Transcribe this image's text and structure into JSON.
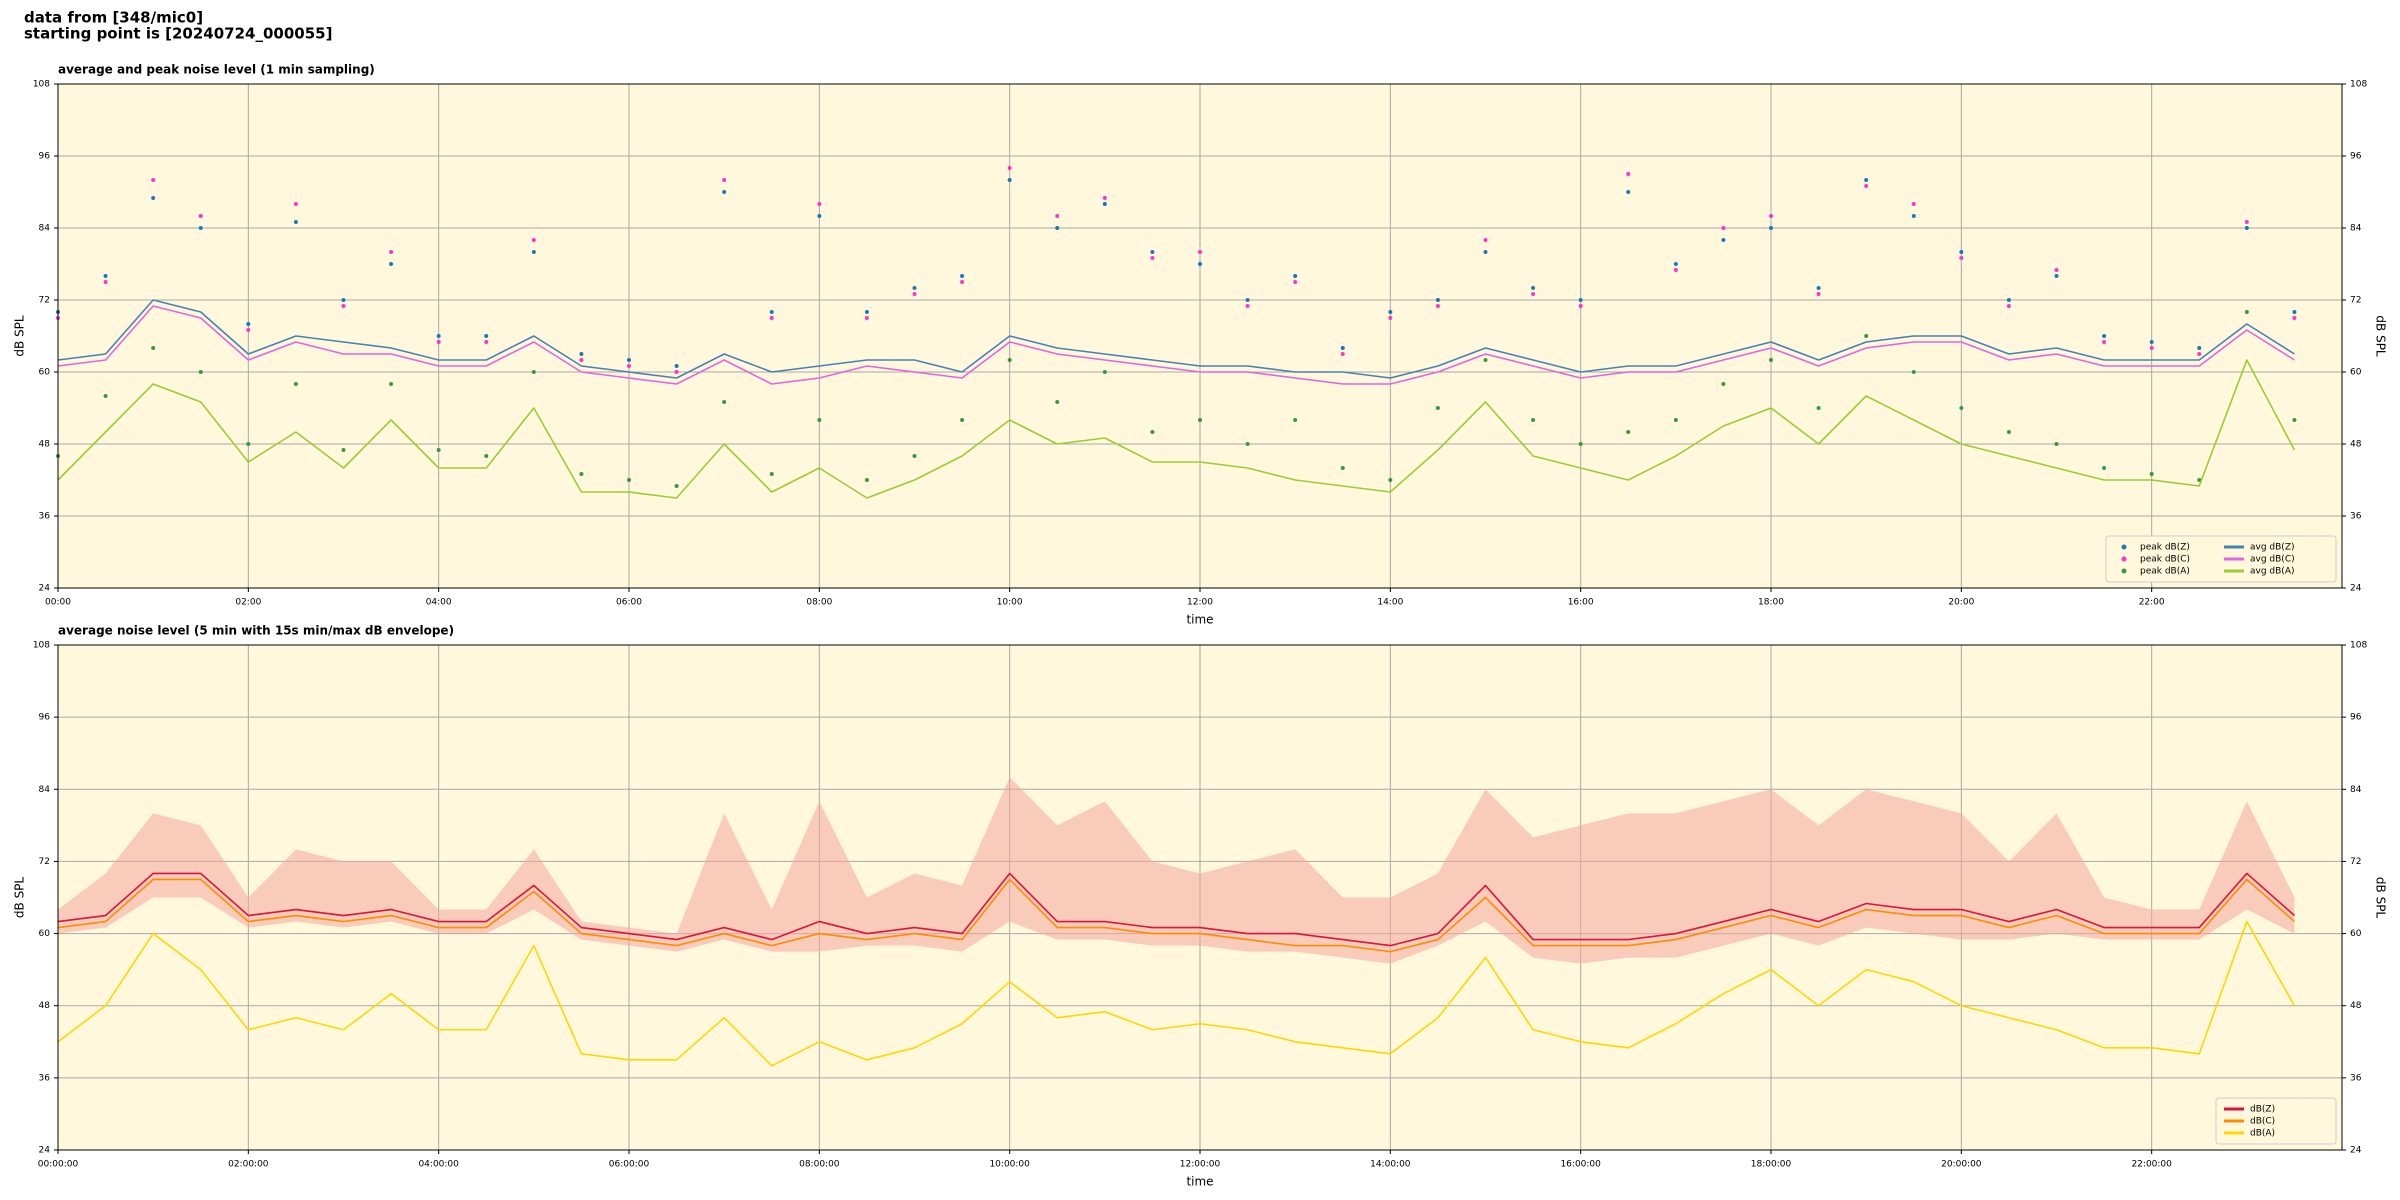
{
  "header": {
    "line1": "data from [348/mic0]",
    "line2": "starting point is [20240724_000055]"
  },
  "chart_data": [
    {
      "type": "line",
      "title": "average and peak noise level (1 min sampling)",
      "xlabel": "time",
      "ylabel": "dB SPL",
      "x": [
        0,
        0.5,
        1,
        1.5,
        2,
        2.5,
        3,
        3.5,
        4,
        4.5,
        5,
        5.5,
        6,
        6.5,
        7,
        7.5,
        8,
        8.5,
        9,
        9.5,
        10,
        10.5,
        11,
        11.5,
        12,
        12.5,
        13,
        13.5,
        14,
        14.5,
        15,
        15.5,
        16,
        16.5,
        17,
        17.5,
        18,
        18.5,
        19,
        19.5,
        20,
        20.5,
        21,
        21.5,
        22,
        22.5,
        23,
        23.5
      ],
      "xlim": [
        0,
        24
      ],
      "ylim": [
        24,
        108
      ],
      "yticks": [
        24,
        36,
        48,
        60,
        72,
        84,
        96,
        108
      ],
      "xticks": [
        {
          "value": 0,
          "label": "00:00"
        },
        {
          "value": 2,
          "label": "02:00"
        },
        {
          "value": 4,
          "label": "04:00"
        },
        {
          "value": 6,
          "label": "06:00"
        },
        {
          "value": 8,
          "label": "08:00"
        },
        {
          "value": 10,
          "label": "10:00"
        },
        {
          "value": 12,
          "label": "12:00"
        },
        {
          "value": 14,
          "label": "14:00"
        },
        {
          "value": 16,
          "label": "16:00"
        },
        {
          "value": 18,
          "label": "18:00"
        },
        {
          "value": 20,
          "label": "20:00"
        },
        {
          "value": 22,
          "label": "22:00"
        }
      ],
      "grid": true,
      "background": "#fff8dc",
      "legend": "lower right",
      "legend_columns": 2,
      "series": [
        {
          "name": "peak dB(Z)",
          "marker": "dot",
          "color": "#1f77b4",
          "values": [
            70,
            76,
            89,
            84,
            68,
            85,
            72,
            78,
            66,
            66,
            80,
            63,
            62,
            61,
            90,
            70,
            86,
            70,
            74,
            76,
            92,
            84,
            88,
            80,
            78,
            72,
            76,
            64,
            70,
            72,
            80,
            74,
            72,
            90,
            78,
            82,
            84,
            74,
            92,
            86,
            80,
            72,
            76,
            66,
            65,
            64,
            84,
            70
          ]
        },
        {
          "name": "peak dB(C)",
          "marker": "dot",
          "color": "#ff33cc",
          "values": [
            69,
            75,
            92,
            86,
            67,
            88,
            71,
            80,
            65,
            65,
            82,
            62,
            61,
            60,
            92,
            69,
            88,
            69,
            73,
            75,
            94,
            86,
            89,
            79,
            80,
            71,
            75,
            63,
            69,
            71,
            82,
            73,
            71,
            93,
            77,
            84,
            86,
            73,
            91,
            88,
            79,
            71,
            77,
            65,
            64,
            63,
            85,
            69
          ]
        },
        {
          "name": "peak dB(A)",
          "marker": "dot",
          "color": "#3a9a3a",
          "values": [
            46,
            56,
            64,
            60,
            48,
            58,
            47,
            58,
            47,
            46,
            60,
            43,
            42,
            41,
            55,
            43,
            52,
            42,
            46,
            52,
            62,
            55,
            60,
            50,
            52,
            48,
            52,
            44,
            42,
            54,
            62,
            52,
            48,
            50,
            52,
            58,
            62,
            54,
            66,
            60,
            54,
            50,
            48,
            44,
            43,
            42,
            70,
            52
          ]
        },
        {
          "name": "avg dB(Z)",
          "marker": "line",
          "color": "#4682b4",
          "values": [
            62,
            63,
            72,
            70,
            63,
            66,
            65,
            64,
            62,
            62,
            66,
            61,
            60,
            59,
            63,
            60,
            61,
            62,
            62,
            60,
            66,
            64,
            63,
            62,
            61,
            61,
            60,
            60,
            59,
            61,
            64,
            62,
            60,
            61,
            61,
            63,
            65,
            62,
            65,
            66,
            66,
            63,
            64,
            62,
            62,
            62,
            68,
            63
          ]
        },
        {
          "name": "avg dB(C)",
          "marker": "line",
          "color": "#e066e0",
          "values": [
            61,
            62,
            71,
            69,
            62,
            65,
            63,
            63,
            61,
            61,
            65,
            60,
            59,
            58,
            62,
            58,
            59,
            61,
            60,
            59,
            65,
            63,
            62,
            61,
            60,
            60,
            59,
            58,
            58,
            60,
            63,
            61,
            59,
            60,
            60,
            62,
            64,
            61,
            64,
            65,
            65,
            62,
            63,
            61,
            61,
            61,
            67,
            62
          ]
        },
        {
          "name": "avg dB(A)",
          "marker": "line",
          "color": "#9acd32",
          "values": [
            42,
            50,
            58,
            55,
            45,
            50,
            44,
            52,
            44,
            44,
            54,
            40,
            40,
            39,
            48,
            40,
            44,
            39,
            42,
            46,
            52,
            48,
            49,
            45,
            45,
            44,
            42,
            41,
            40,
            47,
            55,
            46,
            44,
            42,
            46,
            51,
            54,
            48,
            56,
            52,
            48,
            46,
            44,
            42,
            42,
            41,
            62,
            47
          ]
        }
      ]
    },
    {
      "type": "line",
      "title": "average noise level (5 min with 15s min/max dB envelope)",
      "xlabel": "time",
      "ylabel": "dB SPL",
      "x": [
        0,
        0.5,
        1,
        1.5,
        2,
        2.5,
        3,
        3.5,
        4,
        4.5,
        5,
        5.5,
        6,
        6.5,
        7,
        7.5,
        8,
        8.5,
        9,
        9.5,
        10,
        10.5,
        11,
        11.5,
        12,
        12.5,
        13,
        13.5,
        14,
        14.5,
        15,
        15.5,
        16,
        16.5,
        17,
        17.5,
        18,
        18.5,
        19,
        19.5,
        20,
        20.5,
        21,
        21.5,
        22,
        22.5,
        23,
        23.5
      ],
      "xlim": [
        0,
        24
      ],
      "ylim": [
        24,
        108
      ],
      "yticks": [
        24,
        36,
        48,
        60,
        72,
        84,
        96,
        108
      ],
      "xticks": [
        {
          "value": 0,
          "label": "00:00:00"
        },
        {
          "value": 2,
          "label": "02:00:00"
        },
        {
          "value": 4,
          "label": "04:00:00"
        },
        {
          "value": 6,
          "label": "06:00:00"
        },
        {
          "value": 8,
          "label": "08:00:00"
        },
        {
          "value": 10,
          "label": "10:00:00"
        },
        {
          "value": 12,
          "label": "12:00:00"
        },
        {
          "value": 14,
          "label": "14:00:00"
        },
        {
          "value": 16,
          "label": "16:00:00"
        },
        {
          "value": 18,
          "label": "18:00:00"
        },
        {
          "value": 20,
          "label": "20:00:00"
        },
        {
          "value": 22,
          "label": "22:00:00"
        }
      ],
      "grid": true,
      "background": "#fff8dc",
      "legend": "lower right",
      "legend_columns": 1,
      "band": {
        "color": "#f4a6a0",
        "low": [
          60,
          61,
          66,
          66,
          61,
          62,
          61,
          62,
          60,
          60,
          64,
          59,
          58,
          57,
          59,
          57,
          57,
          58,
          58,
          57,
          62,
          59,
          59,
          58,
          58,
          57,
          57,
          56,
          55,
          58,
          62,
          56,
          55,
          56,
          56,
          58,
          60,
          58,
          61,
          60,
          59,
          59,
          60,
          59,
          59,
          59,
          64,
          60
        ],
        "high": [
          64,
          70,
          80,
          78,
          66,
          74,
          72,
          72,
          64,
          64,
          74,
          62,
          61,
          60,
          80,
          64,
          82,
          66,
          70,
          68,
          86,
          78,
          82,
          72,
          70,
          72,
          74,
          66,
          66,
          70,
          84,
          76,
          78,
          80,
          80,
          82,
          84,
          78,
          84,
          82,
          80,
          72,
          80,
          66,
          64,
          64,
          82,
          66
        ]
      },
      "series": [
        {
          "name": "dB(Z)",
          "marker": "line",
          "color": "#dc143c",
          "values": [
            62,
            63,
            70,
            70,
            63,
            64,
            63,
            64,
            62,
            62,
            68,
            61,
            60,
            59,
            61,
            59,
            62,
            60,
            61,
            60,
            70,
            62,
            62,
            61,
            61,
            60,
            60,
            59,
            58,
            60,
            68,
            59,
            59,
            59,
            60,
            62,
            64,
            62,
            65,
            64,
            64,
            62,
            64,
            61,
            61,
            61,
            70,
            63
          ]
        },
        {
          "name": "dB(C)",
          "marker": "line",
          "color": "#ff8c00",
          "values": [
            61,
            62,
            69,
            69,
            62,
            63,
            62,
            63,
            61,
            61,
            67,
            60,
            59,
            58,
            60,
            58,
            60,
            59,
            60,
            59,
            69,
            61,
            61,
            60,
            60,
            59,
            58,
            58,
            57,
            59,
            66,
            58,
            58,
            58,
            59,
            61,
            63,
            61,
            64,
            63,
            63,
            61,
            63,
            60,
            60,
            60,
            69,
            62
          ]
        },
        {
          "name": "dB(A)",
          "marker": "line",
          "color": "#ffd700",
          "values": [
            42,
            48,
            60,
            54,
            44,
            46,
            44,
            50,
            44,
            44,
            58,
            40,
            39,
            39,
            46,
            38,
            42,
            39,
            41,
            45,
            52,
            46,
            47,
            44,
            45,
            44,
            42,
            41,
            40,
            46,
            56,
            44,
            42,
            41,
            45,
            50,
            54,
            48,
            54,
            52,
            48,
            46,
            44,
            41,
            41,
            40,
            62,
            48
          ]
        }
      ]
    }
  ]
}
